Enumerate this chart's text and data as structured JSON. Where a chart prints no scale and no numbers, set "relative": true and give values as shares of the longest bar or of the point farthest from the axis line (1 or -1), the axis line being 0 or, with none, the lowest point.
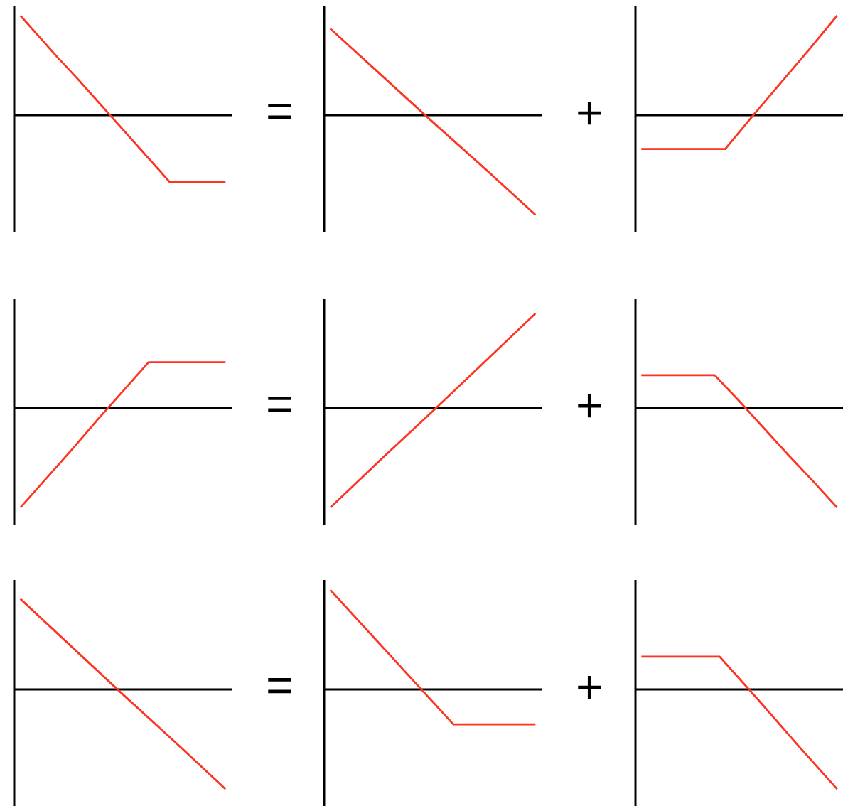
{
  "chart_data": [
    {
      "type": "line",
      "relative": true,
      "categories": [
        null,
        null,
        null,
        null,
        null,
        null,
        null,
        null,
        null,
        null,
        null,
        null
      ],
      "values": [
        1,
        0.79,
        0.58,
        0.38,
        0.17,
        -0.04,
        -0.25,
        -0.46,
        -0.67,
        -0.67,
        -0.67,
        -0.67
      ],
      "color": "#ff3322",
      "annotations": [
        "="
      ]
    },
    {
      "type": "line",
      "relative": true,
      "categories": [
        null,
        null,
        null,
        null,
        null
      ],
      "values": [
        0.87,
        0.4,
        -0.07,
        -0.53,
        -1
      ],
      "color": "#ff3322",
      "annotations": [
        "+"
      ]
    },
    {
      "type": "line",
      "relative": true,
      "categories": [
        null,
        null,
        null,
        null,
        null,
        null,
        null,
        null
      ],
      "values": [
        -0.34,
        -0.34,
        -0.34,
        -0.34,
        0,
        0.33,
        0.66,
        1
      ],
      "color": "#ff3322"
    },
    {
      "type": "line",
      "relative": true,
      "categories": [
        null,
        null,
        null,
        null,
        null,
        null,
        null,
        null,
        null
      ],
      "values": [
        -1,
        -0.71,
        -0.42,
        -0.12,
        0.17,
        0.46,
        0.46,
        0.46,
        0.46
      ],
      "color": "#ff3322",
      "annotations": [
        "="
      ]
    },
    {
      "type": "line",
      "relative": true,
      "categories": [
        null,
        null,
        null,
        null,
        null
      ],
      "values": [
        -1,
        -0.51,
        -0.03,
        0.46,
        0.95
      ],
      "color": "#ff3322",
      "annotations": [
        "+"
      ]
    },
    {
      "type": "line",
      "relative": true,
      "categories": [
        null,
        null,
        null,
        null,
        null,
        null,
        null,
        null,
        null
      ],
      "values": [
        0.33,
        0.33,
        0.33,
        0.33,
        0.07,
        -0.2,
        -0.47,
        -0.73,
        -1
      ],
      "color": "#ff3322"
    },
    {
      "type": "line",
      "relative": true,
      "categories": [
        null,
        null,
        null,
        null,
        null
      ],
      "values": [
        0.91,
        0.43,
        -0.05,
        -0.52,
        -1
      ],
      "color": "#ff3322",
      "annotations": [
        "="
      ]
    },
    {
      "type": "line",
      "relative": true,
      "categories": [
        null,
        null,
        null,
        null,
        null,
        null
      ],
      "values": [
        1,
        0.55,
        0.1,
        -0.35,
        -0.35,
        -0.35
      ],
      "color": "#ff3322",
      "annotations": [
        "+"
      ]
    },
    {
      "type": "line",
      "relative": true,
      "categories": [
        null,
        null,
        null,
        null,
        null,
        null
      ],
      "values": [
        0.33,
        0.33,
        0.33,
        -0.11,
        -0.56,
        -1
      ],
      "color": "#ff3322"
    }
  ]
}
